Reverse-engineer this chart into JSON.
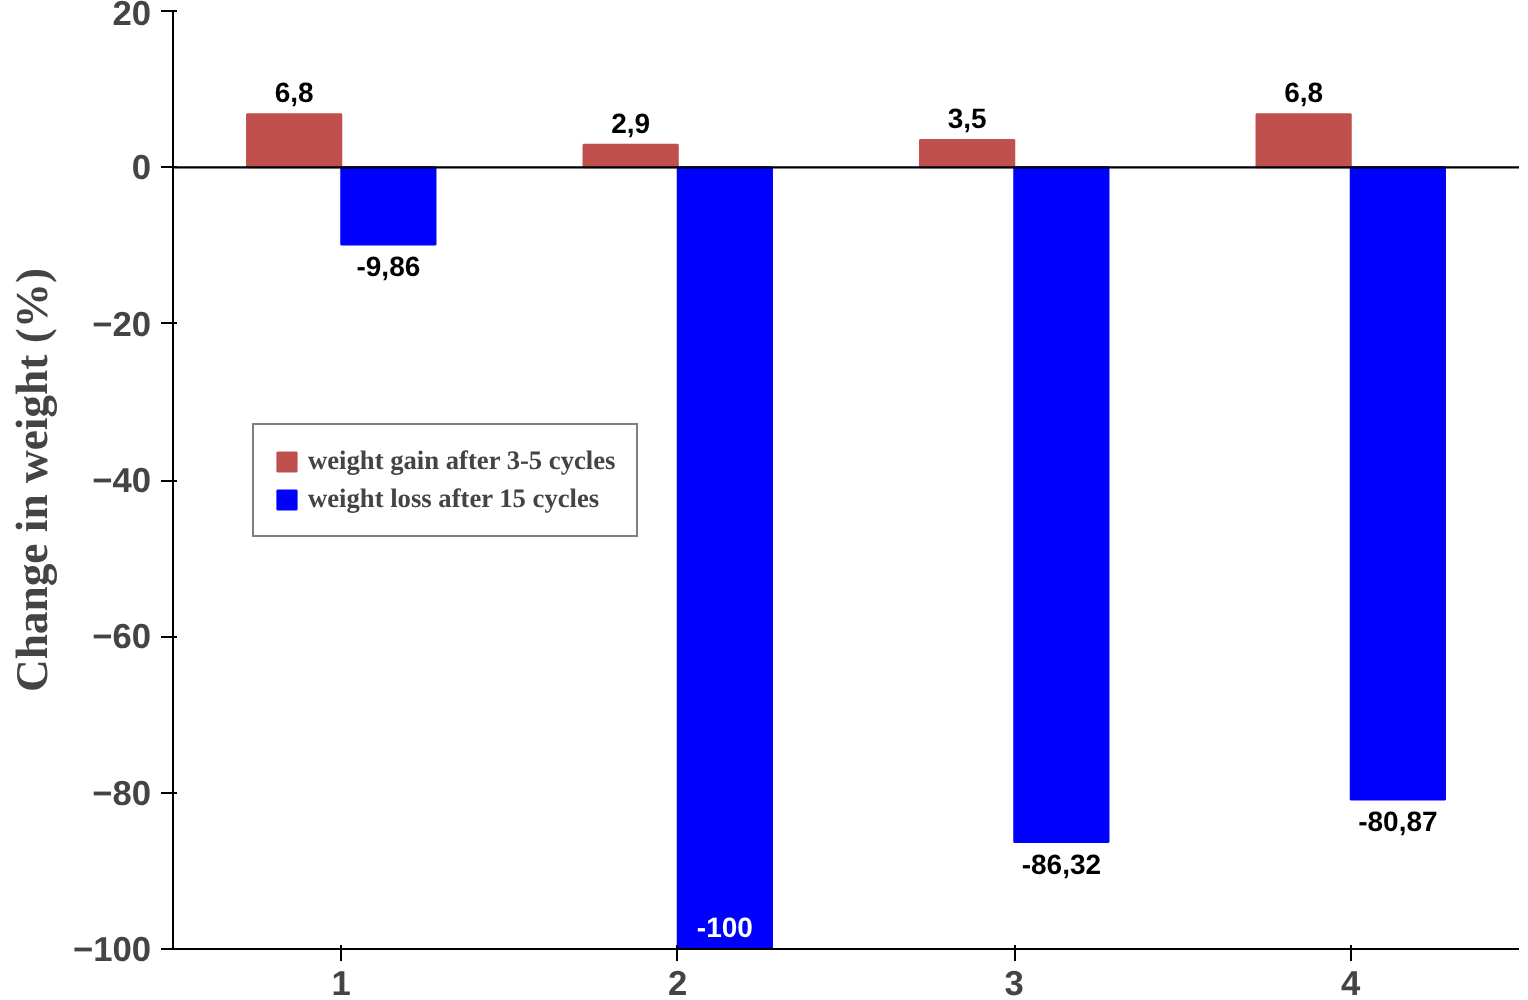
{
  "chart_data": {
    "type": "bar",
    "ylabel": "Change in weight (%)",
    "categories": [
      "1",
      "2",
      "3",
      "4"
    ],
    "series": [
      {
        "name": "weight gain after 3-5 cycles",
        "color": "#c0504d",
        "values": [
          6.8,
          2.9,
          3.5,
          6.8
        ],
        "value_labels": [
          "6,8",
          "2,9",
          "3,5",
          "6,8"
        ]
      },
      {
        "name": "weight loss after 15 cycles",
        "color": "#0000ff",
        "values": [
          -9.86,
          -100,
          -86.32,
          -80.87
        ],
        "value_labels": [
          "-9,86",
          "-100",
          "-86,32",
          "-80,87"
        ]
      }
    ],
    "ylim": [
      -100,
      20
    ],
    "yticks": [
      -100,
      -80,
      -60,
      -40,
      -20,
      0,
      20
    ],
    "grid": false,
    "legend": "left",
    "ref_lines": [
      {
        "axis": "y",
        "value": 0
      }
    ]
  }
}
